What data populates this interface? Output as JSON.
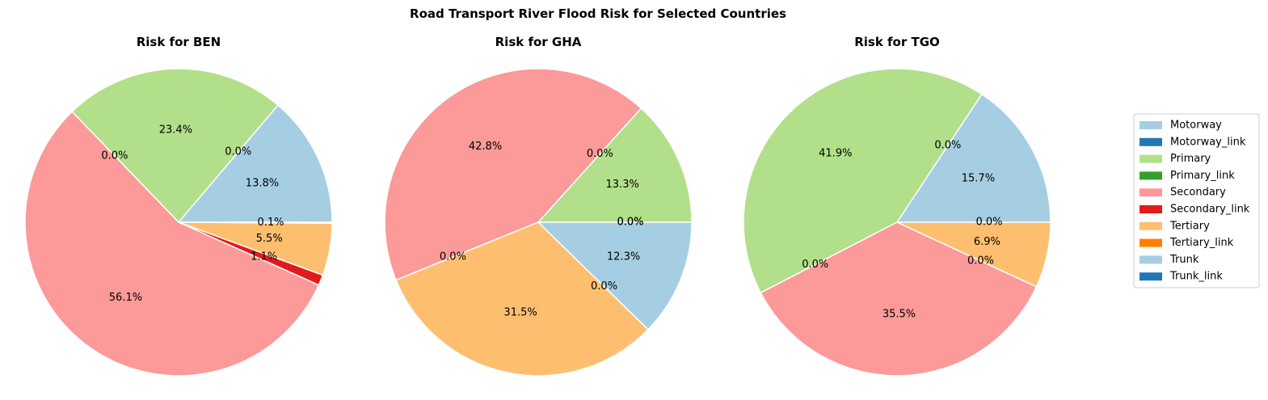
{
  "figure_title": "Road Transport River Flood Risk for Selected Countries",
  "legend": {
    "placement": "right",
    "entries": [
      {
        "label": "Motorway",
        "color": "#a6cee3"
      },
      {
        "label": "Motorway_link",
        "color": "#1f78b4"
      },
      {
        "label": "Primary",
        "color": "#b2df8a"
      },
      {
        "label": "Primary_link",
        "color": "#33a02c"
      },
      {
        "label": "Secondary",
        "color": "#fb9a99"
      },
      {
        "label": "Secondary_link",
        "color": "#e31a1c"
      },
      {
        "label": "Tertiary",
        "color": "#fdbf6f"
      },
      {
        "label": "Tertiary_link",
        "color": "#ff7f00"
      },
      {
        "label": "Trunk",
        "color": "#a6cee3"
      },
      {
        "label": "Trunk_link",
        "color": "#1f78b4"
      }
    ]
  },
  "chart_data": [
    {
      "type": "pie",
      "title": "Risk for BEN",
      "start_angle_deg": 0,
      "slices": [
        {
          "category": "Trunk",
          "value": 13.8,
          "label": "13.8%",
          "color": "#a6cee3"
        },
        {
          "category": "Trunk_link",
          "value": 0.0,
          "label": "0.0%",
          "color": "#1f78b4"
        },
        {
          "category": "Primary",
          "value": 23.4,
          "label": "23.4%",
          "color": "#b2df8a"
        },
        {
          "category": "Primary_link",
          "value": 0.0,
          "label": "0.0%",
          "color": "#33a02c"
        },
        {
          "category": "Secondary",
          "value": 56.1,
          "label": "56.1%",
          "color": "#fb9a99"
        },
        {
          "category": "Secondary_link",
          "value": 1.1,
          "label": "1.1%",
          "color": "#e31a1c"
        },
        {
          "category": "Tertiary",
          "value": 5.5,
          "label": "5.5%",
          "color": "#fdbf6f"
        },
        {
          "category": "Tertiary_link",
          "value": 0.1,
          "label": "0.1%",
          "color": "#ff7f00"
        }
      ]
    },
    {
      "type": "pie",
      "title": "Risk for GHA",
      "start_angle_deg": 0,
      "slices": [
        {
          "category": "Tertiary_link",
          "value": 0.0,
          "label": "0.0%",
          "color": "#ff7f00"
        },
        {
          "category": "Primary",
          "value": 13.3,
          "label": "13.3%",
          "color": "#b2df8a"
        },
        {
          "category": "Primary_link",
          "value": 0.0,
          "label": "0.0%",
          "color": "#33a02c"
        },
        {
          "category": "Secondary",
          "value": 42.8,
          "label": "42.8%",
          "color": "#fb9a99"
        },
        {
          "category": "Secondary_link",
          "value": 0.0,
          "label": "0.0%",
          "color": "#e31a1c"
        },
        {
          "category": "Tertiary",
          "value": 31.5,
          "label": "31.5%",
          "color": "#fdbf6f"
        },
        {
          "category": "Trunk_link",
          "value": 0.0,
          "label": "0.0%",
          "color": "#1f78b4"
        },
        {
          "category": "Trunk",
          "value": 12.3,
          "label": "12.3%",
          "color": "#a6cee3"
        },
        {
          "category": "Motorway",
          "value": 0.0,
          "label": "0.0%",
          "color": "#a6cee3"
        }
      ]
    },
    {
      "type": "pie",
      "title": "Risk for TGO",
      "start_angle_deg": 0,
      "slices": [
        {
          "category": "Trunk",
          "value": 15.7,
          "label": "15.7%",
          "color": "#a6cee3"
        },
        {
          "category": "Trunk_link",
          "value": 0.0,
          "label": "0.0%",
          "color": "#1f78b4"
        },
        {
          "category": "Primary",
          "value": 41.9,
          "label": "41.9%",
          "color": "#b2df8a"
        },
        {
          "category": "Primary_link",
          "value": 0.0,
          "label": "0.0%",
          "color": "#33a02c"
        },
        {
          "category": "Secondary",
          "value": 35.5,
          "label": "35.5%",
          "color": "#fb9a99"
        },
        {
          "category": "Secondary_link",
          "value": 0.0,
          "label": "0.0%",
          "color": "#e31a1c"
        },
        {
          "category": "Tertiary",
          "value": 6.9,
          "label": "6.9%",
          "color": "#fdbf6f"
        },
        {
          "category": "Tertiary_link",
          "value": 0.0,
          "label": "0.0%",
          "color": "#ff7f00"
        }
      ]
    }
  ]
}
